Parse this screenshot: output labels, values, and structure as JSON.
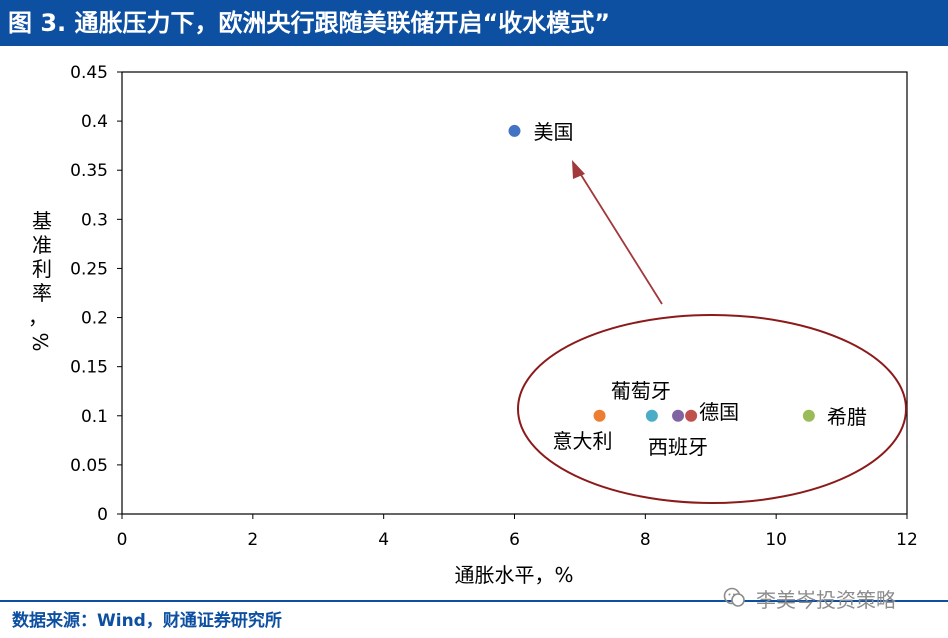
{
  "header": {
    "title": "图 3. 通胀压力下，欧洲央行跟随美联储开启“收水模式”"
  },
  "chart_data": {
    "type": "scatter",
    "xlabel": "通胀水平，%",
    "ylabel": "基准利率，%",
    "xlim": [
      0,
      12
    ],
    "ylim": [
      0,
      0.45
    ],
    "x_ticks": [
      "0",
      "2",
      "4",
      "6",
      "8",
      "10",
      "12"
    ],
    "y_ticks": [
      "0",
      "0.05",
      "0.1",
      "0.15",
      "0.2",
      "0.25",
      "0.3",
      "0.35",
      "0.4",
      "0.45"
    ],
    "grid": false,
    "points": [
      {
        "label": "美国",
        "x": 6.0,
        "y": 0.39,
        "color": "#4472c4"
      },
      {
        "label": "意大利",
        "x": 7.3,
        "y": 0.1,
        "color": "#ed7d31"
      },
      {
        "label": "葡萄牙",
        "x": 8.1,
        "y": 0.1,
        "color": "#4bacc6"
      },
      {
        "label": "西班牙",
        "x": 8.5,
        "y": 0.1,
        "color": "#8064a2"
      },
      {
        "label": "德国",
        "x": 8.7,
        "y": 0.1,
        "color": "#c0504d"
      },
      {
        "label": "希腊",
        "x": 10.5,
        "y": 0.1,
        "color": "#9bbb59"
      }
    ],
    "annotation_color": "#8b1a1a"
  },
  "footer": {
    "source": "数据来源：Wind，财通证券研究所",
    "watermark": "李美岑投资策略"
  }
}
